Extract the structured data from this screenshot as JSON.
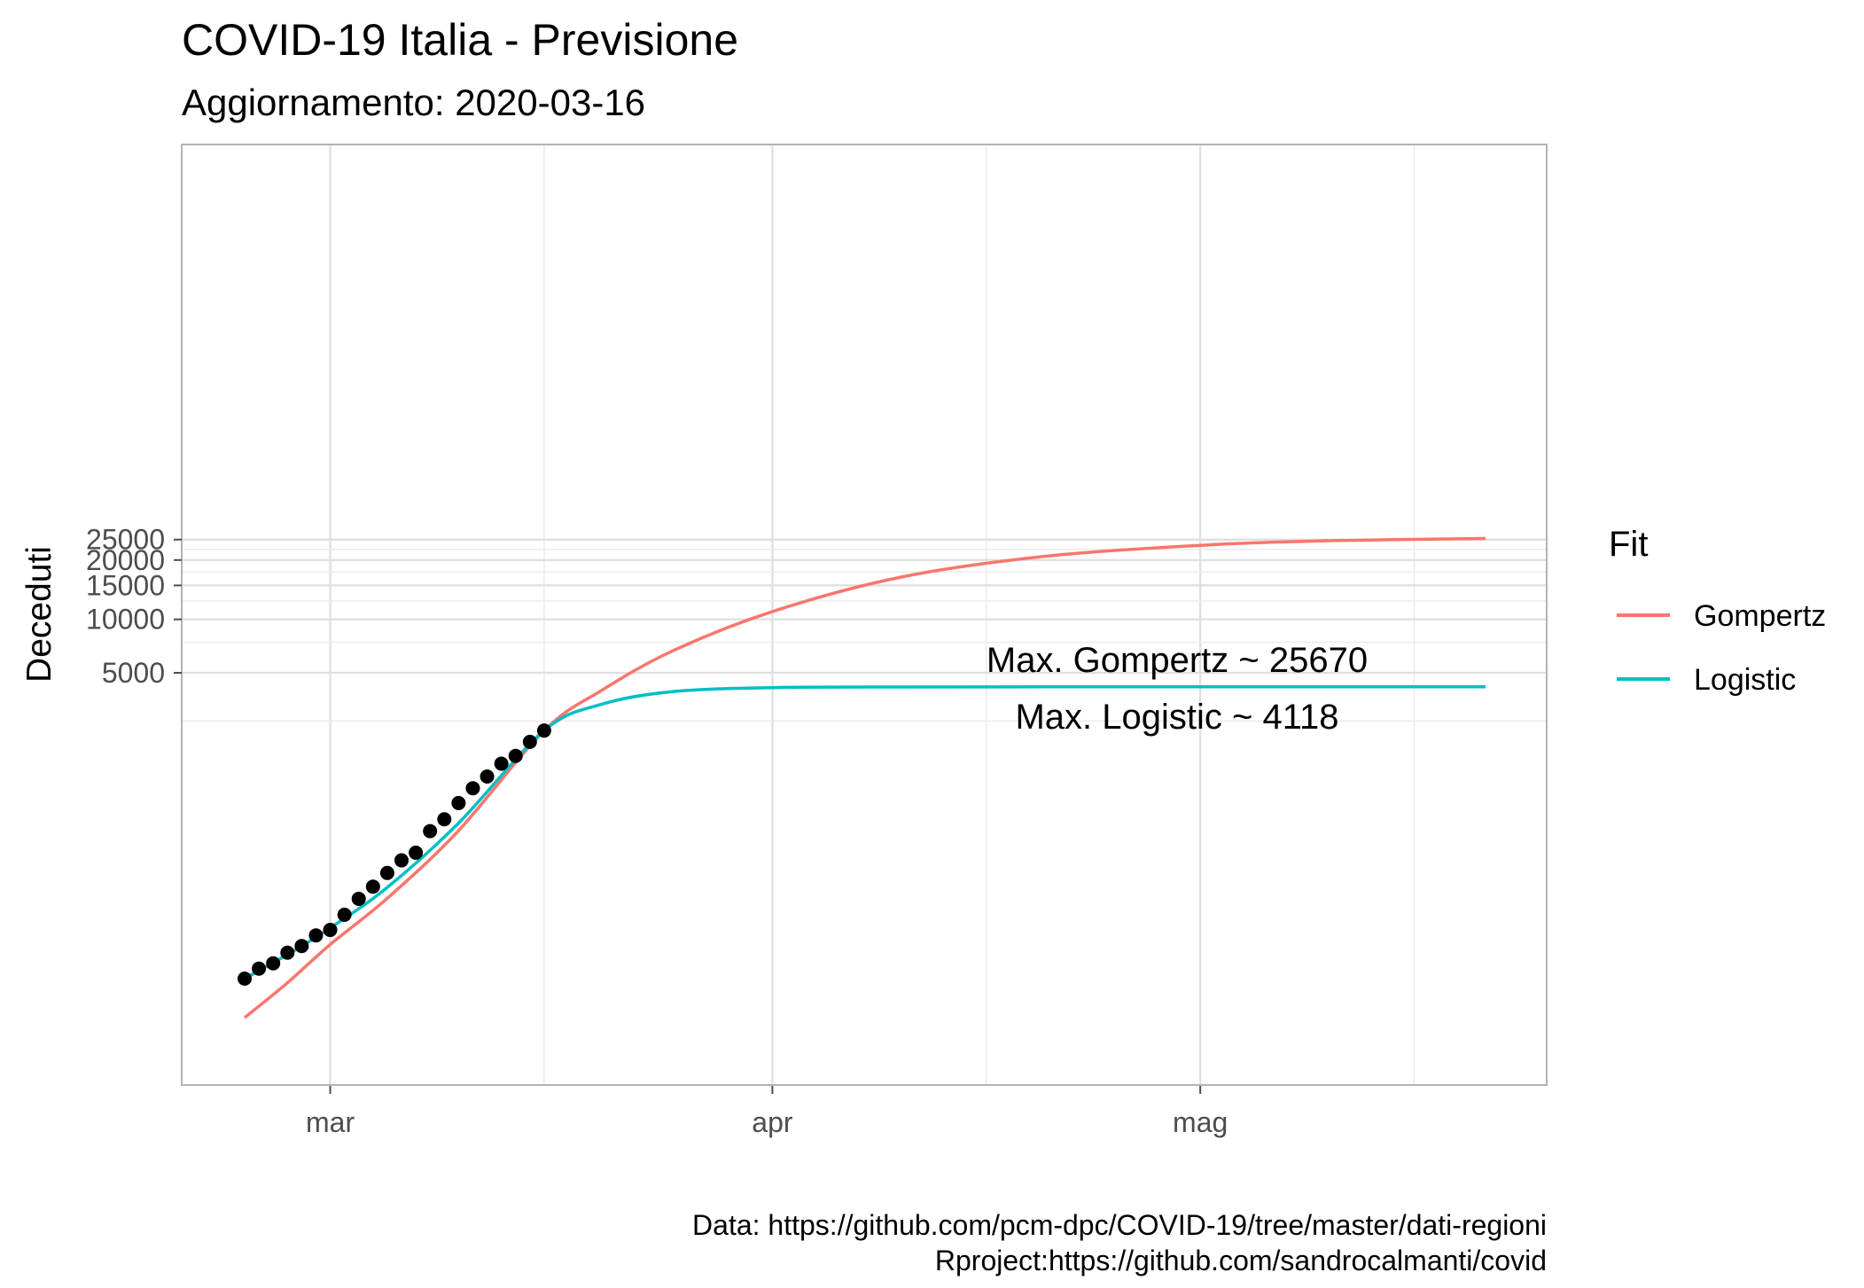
{
  "chart_data": {
    "type": "line",
    "title": "COVID-19 Italia - Previsione",
    "subtitle": "Aggiornamento: 2020-03-16",
    "xlabel": "",
    "ylabel": "Deceduti",
    "y_scale": "log",
    "x_ticks": [
      "mar",
      "apr",
      "mag"
    ],
    "y_ticks": [
      "5000",
      "10000",
      "15000",
      "20000",
      "25000"
    ],
    "legend": {
      "title": "Fit",
      "position": "right"
    },
    "annotations": [
      "Max. Gompertz ~ 25670",
      "Max. Logistic ~ 4118"
    ],
    "caption": [
      "Data: https://github.com/pcm-dpc/COVID-19/tree/master/dati-regioni",
      "Rproject:https://github.com/sandrocalmanti/covid"
    ],
    "grid": true,
    "observed": {
      "x": [
        "2020-02-24",
        "2020-02-25",
        "2020-02-26",
        "2020-02-27",
        "2020-02-28",
        "2020-02-29",
        "2020-03-01",
        "2020-03-02",
        "2020-03-03",
        "2020-03-04",
        "2020-03-05",
        "2020-03-06",
        "2020-03-07",
        "2020-03-08",
        "2020-03-09",
        "2020-03-10",
        "2020-03-11",
        "2020-03-12",
        "2020-03-13",
        "2020-03-14",
        "2020-03-15",
        "2020-03-16"
      ],
      "y": [
        7,
        10,
        12,
        17,
        21,
        29,
        34,
        52,
        79,
        107,
        148,
        197,
        233,
        366,
        463,
        631,
        827,
        1016,
        1266,
        1441,
        1809,
        2158
      ]
    },
    "series": [
      {
        "name": "Gompertz",
        "color": "#F8766D",
        "x": [
          "2020-02-24",
          "2020-02-27",
          "2020-03-01",
          "2020-03-05",
          "2020-03-10",
          "2020-03-16",
          "2020-03-20",
          "2020-03-25",
          "2020-04-01",
          "2020-04-10",
          "2020-04-20",
          "2020-05-01",
          "2020-05-10",
          "2020-05-21"
        ],
        "y": [
          1.4,
          6,
          22,
          80,
          370,
          2158,
          3900,
          6700,
          11000,
          16500,
          20800,
          23500,
          24700,
          25300
        ]
      },
      {
        "name": "Logistic",
        "color": "#00BFC4",
        "x": [
          "2020-02-24",
          "2020-02-27",
          "2020-03-01",
          "2020-03-05",
          "2020-03-10",
          "2020-03-16",
          "2020-03-20",
          "2020-03-25",
          "2020-04-01",
          "2020-04-10",
          "2020-04-20",
          "2020-05-01",
          "2020-05-10",
          "2020-05-21"
        ],
        "y": [
          7,
          16,
          36,
          105,
          430,
          2158,
          3200,
          3850,
          4070,
          4110,
          4118,
          4118,
          4118,
          4118
        ]
      }
    ]
  }
}
